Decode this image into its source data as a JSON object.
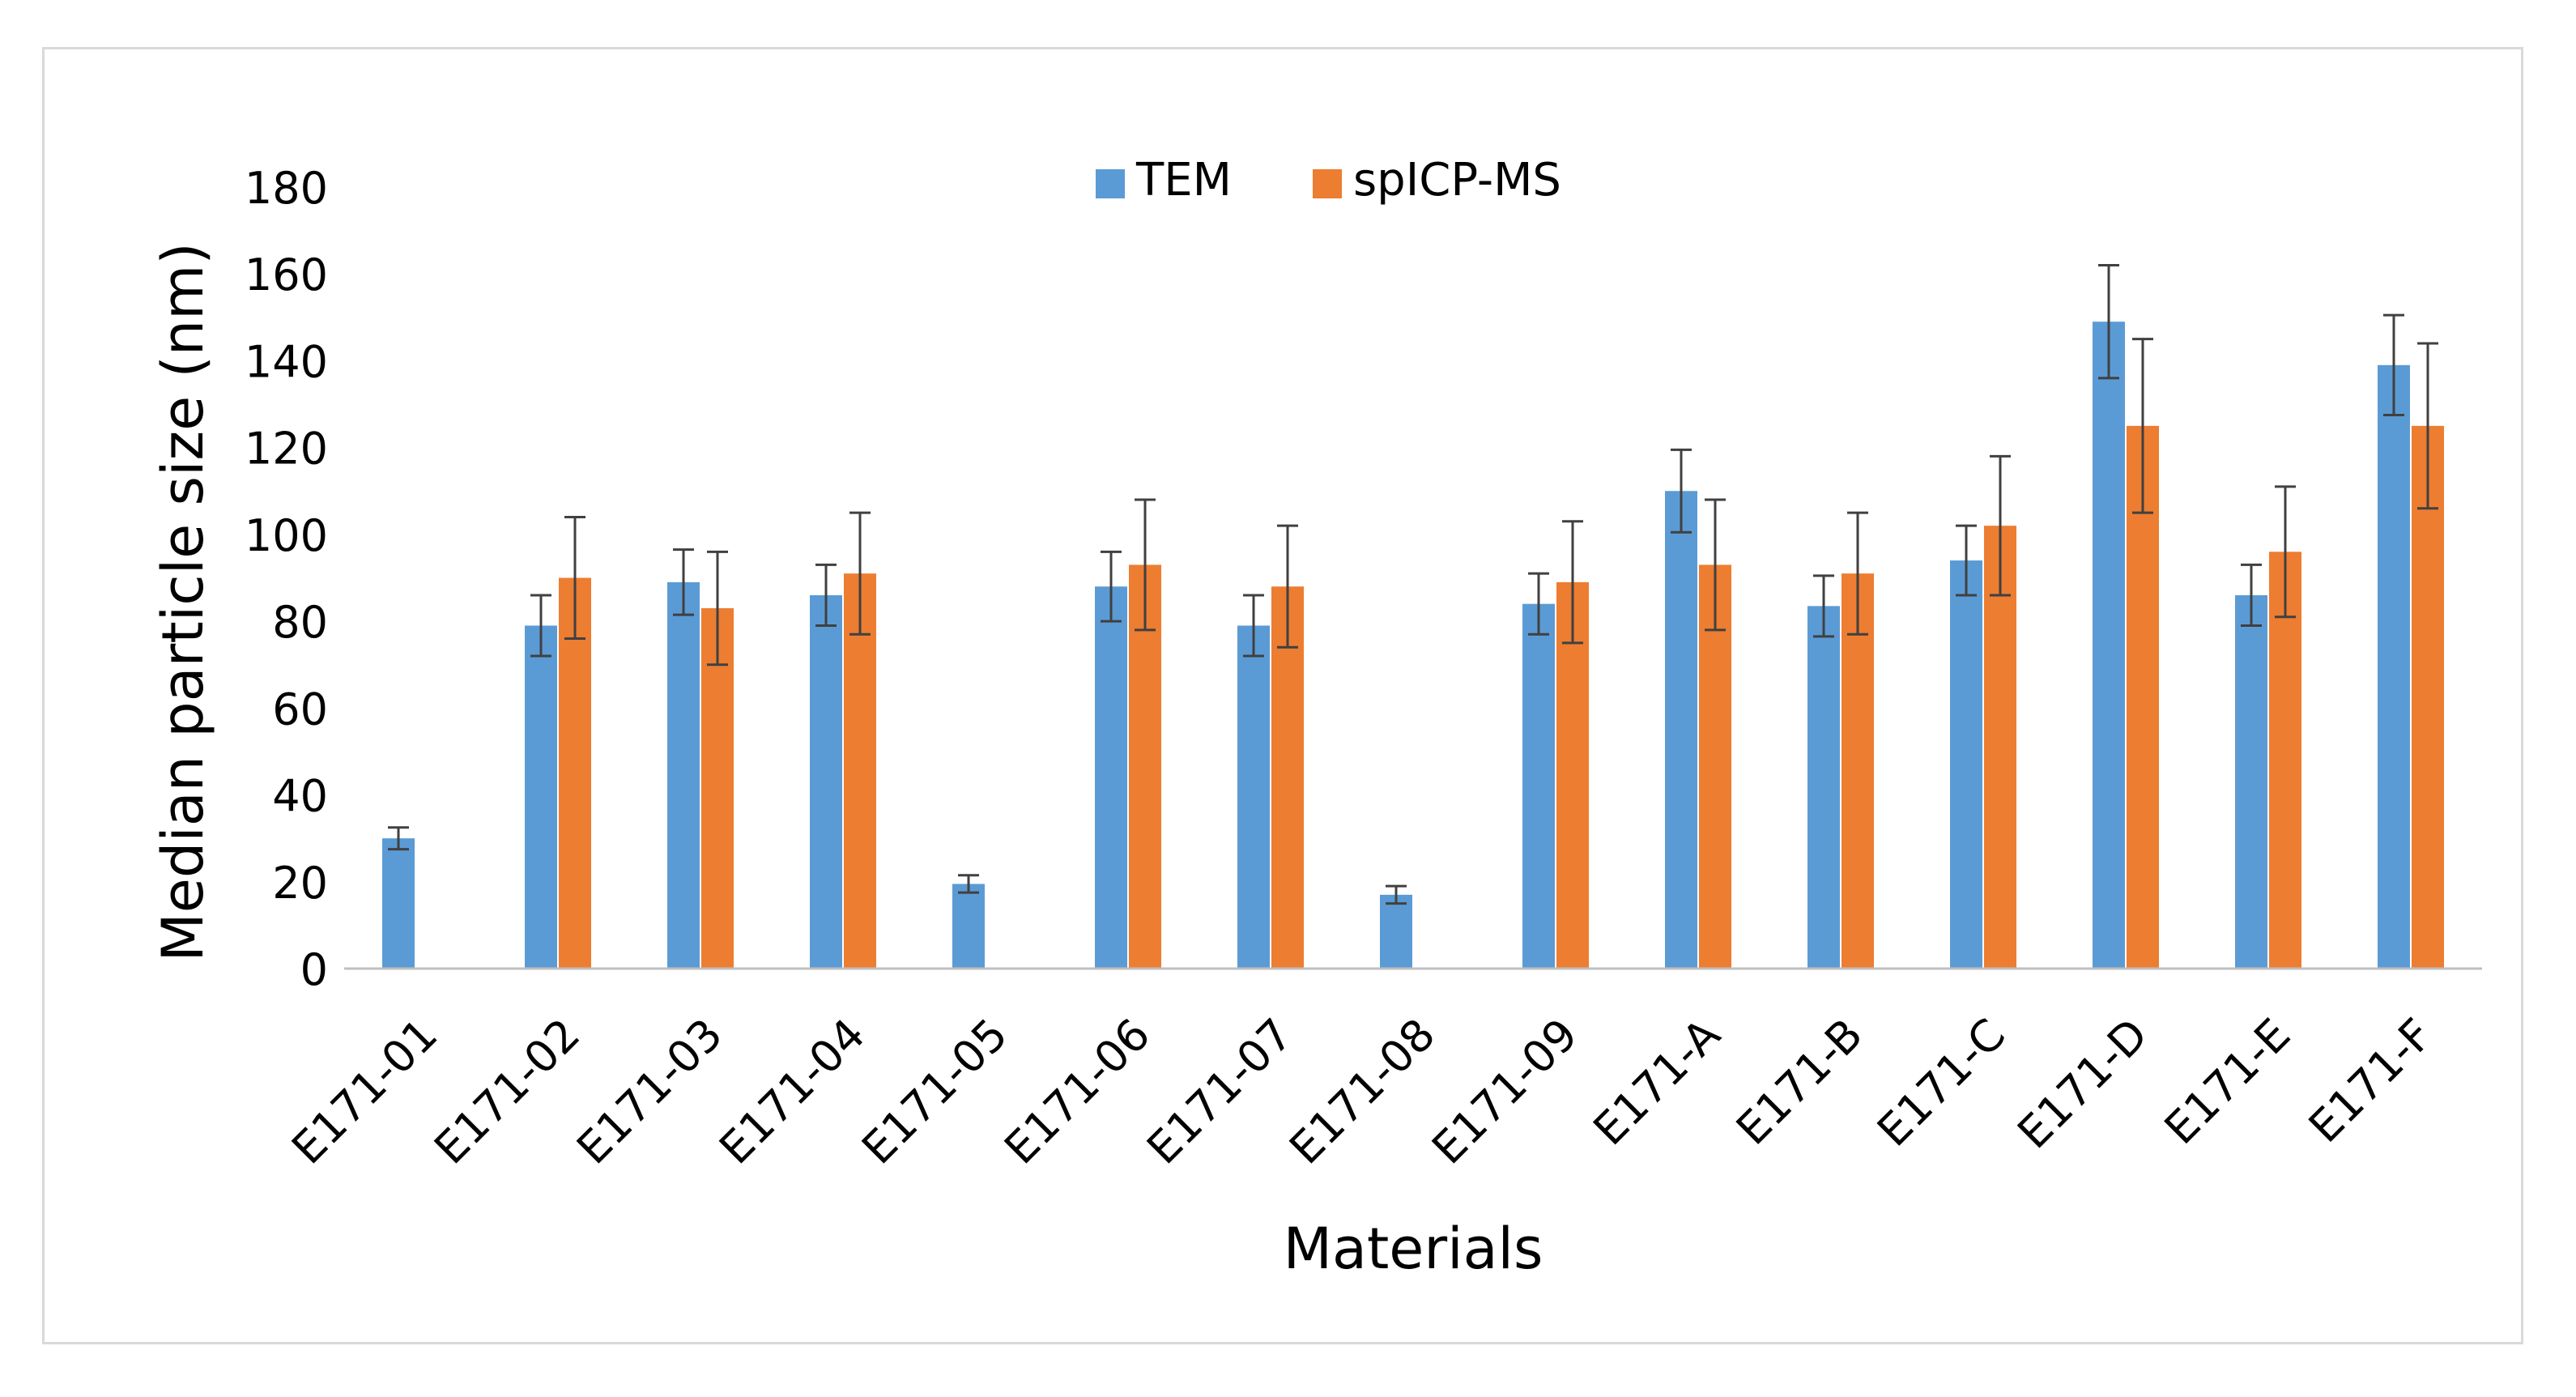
{
  "chart_data": {
    "type": "bar",
    "title": "",
    "xlabel": "Materials",
    "ylabel": "Median particle size (nm)",
    "ylim": [
      0,
      180
    ],
    "yticks": [
      0,
      20,
      40,
      60,
      80,
      100,
      120,
      140,
      160,
      180
    ],
    "grid": false,
    "legend_position": "top-center",
    "categories": [
      "E171-01",
      "E171-02",
      "E171-03",
      "E171-04",
      "E171-05",
      "E171-06",
      "E171-07",
      "E171-08",
      "E171-09",
      "E171-A",
      "E171-B",
      "E171-C",
      "E171-D",
      "E171-E",
      "E171-F"
    ],
    "series": [
      {
        "name": "TEM",
        "color": "#5b9bd5",
        "values": [
          30,
          79,
          89,
          86,
          19.5,
          88,
          79,
          17,
          84,
          110,
          83.5,
          94,
          149,
          86,
          139
        ],
        "errors": [
          2.5,
          7,
          7.5,
          7,
          2,
          8,
          7,
          2,
          7,
          9.5,
          7,
          8,
          13,
          7,
          11.5
        ]
      },
      {
        "name": "spICP-MS",
        "color": "#ed7d31",
        "values": [
          null,
          90,
          83,
          91,
          null,
          93,
          88,
          null,
          89,
          93,
          91,
          102,
          125,
          96,
          125
        ],
        "errors": [
          null,
          14,
          13,
          14,
          null,
          15,
          14,
          null,
          14,
          15,
          14,
          16,
          20,
          15,
          19
        ]
      }
    ]
  }
}
